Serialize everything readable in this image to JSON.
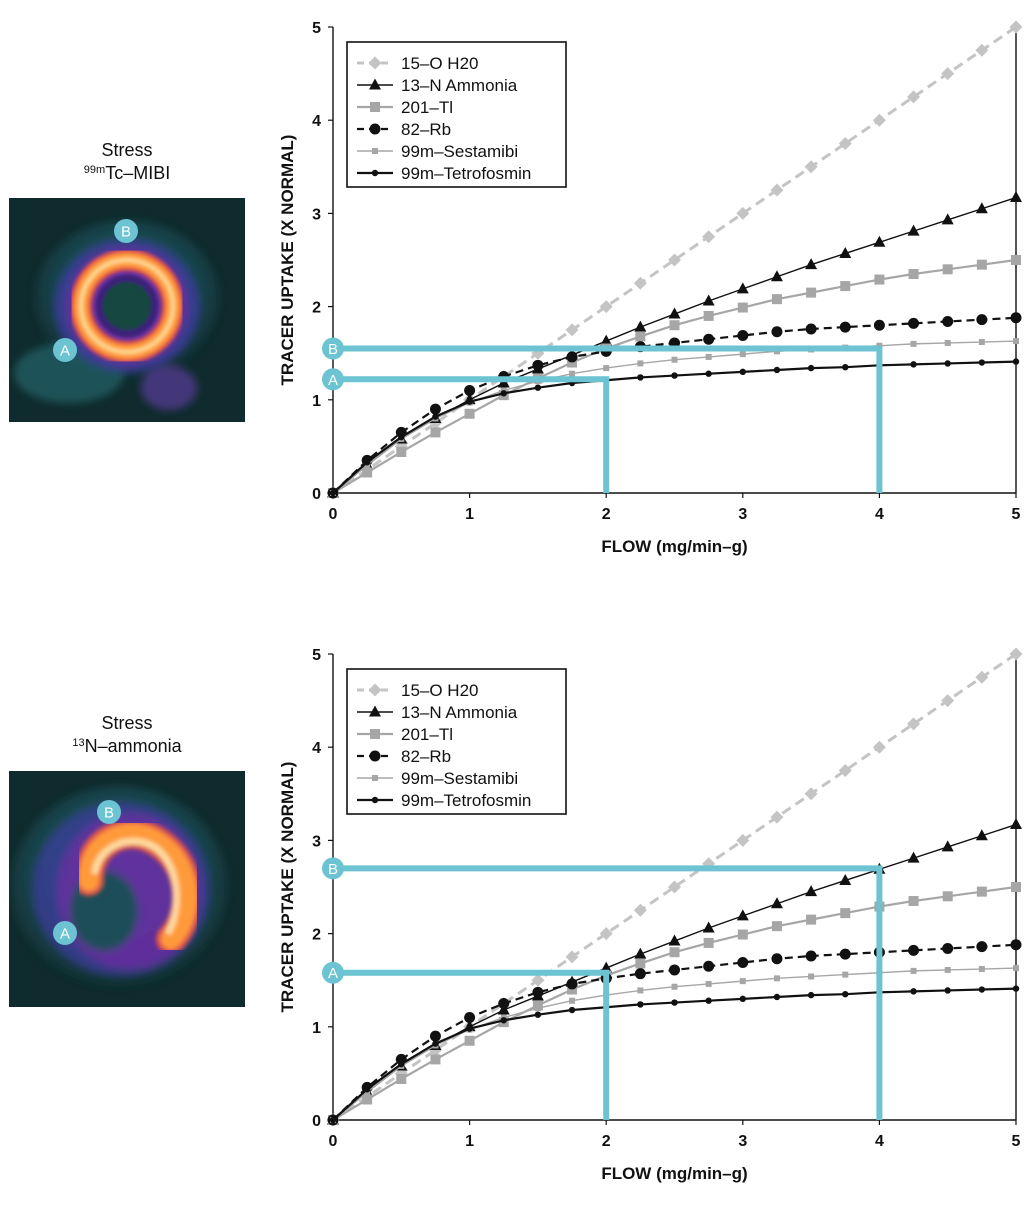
{
  "panels": [
    {
      "caption_line1": "Stress",
      "caption_iso": "99m",
      "caption_rest": "Tc–MIBI",
      "scan": {
        "type": "ring",
        "label_a": "A",
        "label_b": "B"
      },
      "chart_data": {
        "type": "line",
        "xlabel": "FLOW (mg/min–g)",
        "ylabel": "TRACER UPTAKE (X NORMAL)",
        "xlim": [
          0,
          5
        ],
        "ylim": [
          0,
          5
        ],
        "xticks": [
          "0",
          "1",
          "2",
          "3",
          "4",
          "5"
        ],
        "yticks": [
          "0",
          "1",
          "2",
          "3",
          "4",
          "5"
        ],
        "grid": false,
        "legend": "top-left",
        "series": [
          {
            "name": "15–O H20",
            "marker": "diamond",
            "color": "#c4c4c4",
            "dash": true,
            "width": 3,
            "x": [
              0,
              0.25,
              0.5,
              0.75,
              1,
              1.25,
              1.5,
              1.75,
              2,
              2.25,
              2.5,
              2.75,
              3,
              3.25,
              3.5,
              3.75,
              4,
              4.25,
              4.5,
              4.75,
              5
            ],
            "y": [
              0,
              0.25,
              0.5,
              0.75,
              1,
              1.25,
              1.5,
              1.75,
              2,
              2.25,
              2.5,
              2.75,
              3,
              3.25,
              3.5,
              3.75,
              4,
              4.25,
              4.5,
              4.75,
              5
            ]
          },
          {
            "name": "13–N Ammonia",
            "marker": "triangle",
            "color": "#111111",
            "dash": false,
            "width": 1.4,
            "x": [
              0,
              0.25,
              0.5,
              0.75,
              1,
              1.25,
              1.5,
              1.75,
              2,
              2.25,
              2.5,
              2.75,
              3,
              3.25,
              3.5,
              3.75,
              4,
              4.25,
              4.5,
              4.75,
              5
            ],
            "y": [
              0,
              0.3,
              0.58,
              0.8,
              1.0,
              1.18,
              1.33,
              1.48,
              1.63,
              1.78,
              1.92,
              2.06,
              2.19,
              2.32,
              2.45,
              2.57,
              2.69,
              2.81,
              2.93,
              3.05,
              3.17
            ]
          },
          {
            "name": "201–Tl",
            "marker": "square",
            "color": "#a6a6a6",
            "dash": false,
            "width": 2.2,
            "x": [
              0,
              0.25,
              0.5,
              0.75,
              1,
              1.25,
              1.5,
              1.75,
              2,
              2.25,
              2.5,
              2.75,
              3,
              3.25,
              3.5,
              3.75,
              4,
              4.25,
              4.5,
              4.75,
              5
            ],
            "y": [
              0,
              0.22,
              0.44,
              0.65,
              0.85,
              1.05,
              1.23,
              1.4,
              1.55,
              1.68,
              1.8,
              1.9,
              1.99,
              2.08,
              2.15,
              2.22,
              2.29,
              2.35,
              2.4,
              2.45,
              2.5
            ]
          },
          {
            "name": "82–Rb",
            "marker": "circle",
            "color": "#111111",
            "dash": true,
            "width": 2.2,
            "x": [
              0,
              0.25,
              0.5,
              0.75,
              1,
              1.25,
              1.5,
              1.75,
              2,
              2.25,
              2.5,
              2.75,
              3,
              3.25,
              3.5,
              3.75,
              4,
              4.25,
              4.5,
              4.75,
              5
            ],
            "y": [
              0,
              0.35,
              0.65,
              0.9,
              1.1,
              1.25,
              1.37,
              1.46,
              1.52,
              1.57,
              1.61,
              1.65,
              1.69,
              1.73,
              1.76,
              1.78,
              1.8,
              1.82,
              1.84,
              1.86,
              1.88
            ]
          },
          {
            "name": "99m–Sestamibi",
            "marker": "smallsquare",
            "color": "#a6a6a6",
            "dash": false,
            "width": 1.4,
            "x": [
              0,
              0.25,
              0.5,
              0.75,
              1,
              1.25,
              1.5,
              1.75,
              2,
              2.25,
              2.5,
              2.75,
              3,
              3.25,
              3.5,
              3.75,
              4,
              4.25,
              4.5,
              4.75,
              5
            ],
            "y": [
              0,
              0.3,
              0.58,
              0.8,
              0.97,
              1.1,
              1.2,
              1.28,
              1.34,
              1.39,
              1.43,
              1.46,
              1.49,
              1.52,
              1.54,
              1.56,
              1.58,
              1.6,
              1.61,
              1.62,
              1.63
            ]
          },
          {
            "name": "99m–Tetrofosmin",
            "marker": "smallcircle",
            "color": "#111111",
            "dash": false,
            "width": 2.2,
            "x": [
              0,
              0.25,
              0.5,
              0.75,
              1,
              1.25,
              1.5,
              1.75,
              2,
              2.25,
              2.5,
              2.75,
              3,
              3.25,
              3.5,
              3.75,
              4,
              4.25,
              4.5,
              4.75,
              5
            ],
            "y": [
              0,
              0.33,
              0.6,
              0.82,
              0.98,
              1.07,
              1.13,
              1.18,
              1.21,
              1.24,
              1.26,
              1.28,
              1.3,
              1.32,
              1.34,
              1.35,
              1.37,
              1.38,
              1.39,
              1.4,
              1.41
            ]
          }
        ],
        "guides": [
          {
            "label": "A",
            "flow": 2,
            "uptake": 1.22
          },
          {
            "label": "B",
            "flow": 4,
            "uptake": 1.55
          }
        ],
        "guide_color": "#6cc3d1"
      }
    },
    {
      "caption_line1": "Stress",
      "caption_iso": "13",
      "caption_rest": "N–ammonia",
      "scan": {
        "type": "horseshoe",
        "label_a": "A",
        "label_b": "B"
      },
      "chart_data": {
        "type": "line",
        "xlabel": "FLOW (mg/min–g)",
        "ylabel": "TRACER UPTAKE (X NORMAL)",
        "xlim": [
          0,
          5
        ],
        "ylim": [
          0,
          5
        ],
        "xticks": [
          "0",
          "1",
          "2",
          "3",
          "4",
          "5"
        ],
        "yticks": [
          "0",
          "1",
          "2",
          "3",
          "4",
          "5"
        ],
        "grid": false,
        "legend": "top-left",
        "series": [
          {
            "name": "15–O H20",
            "marker": "diamond",
            "color": "#c4c4c4",
            "dash": true,
            "width": 3,
            "x": [
              0,
              0.25,
              0.5,
              0.75,
              1,
              1.25,
              1.5,
              1.75,
              2,
              2.25,
              2.5,
              2.75,
              3,
              3.25,
              3.5,
              3.75,
              4,
              4.25,
              4.5,
              4.75,
              5
            ],
            "y": [
              0,
              0.25,
              0.5,
              0.75,
              1,
              1.25,
              1.5,
              1.75,
              2,
              2.25,
              2.5,
              2.75,
              3,
              3.25,
              3.5,
              3.75,
              4,
              4.25,
              4.5,
              4.75,
              5
            ]
          },
          {
            "name": "13–N Ammonia",
            "marker": "triangle",
            "color": "#111111",
            "dash": false,
            "width": 1.4,
            "x": [
              0,
              0.25,
              0.5,
              0.75,
              1,
              1.25,
              1.5,
              1.75,
              2,
              2.25,
              2.5,
              2.75,
              3,
              3.25,
              3.5,
              3.75,
              4,
              4.25,
              4.5,
              4.75,
              5
            ],
            "y": [
              0,
              0.3,
              0.58,
              0.8,
              1.0,
              1.18,
              1.33,
              1.48,
              1.63,
              1.78,
              1.92,
              2.06,
              2.19,
              2.32,
              2.45,
              2.57,
              2.69,
              2.81,
              2.93,
              3.05,
              3.17
            ]
          },
          {
            "name": "201–Tl",
            "marker": "square",
            "color": "#a6a6a6",
            "dash": false,
            "width": 2.2,
            "x": [
              0,
              0.25,
              0.5,
              0.75,
              1,
              1.25,
              1.5,
              1.75,
              2,
              2.25,
              2.5,
              2.75,
              3,
              3.25,
              3.5,
              3.75,
              4,
              4.25,
              4.5,
              4.75,
              5
            ],
            "y": [
              0,
              0.22,
              0.44,
              0.65,
              0.85,
              1.05,
              1.23,
              1.4,
              1.55,
              1.68,
              1.8,
              1.9,
              1.99,
              2.08,
              2.15,
              2.22,
              2.29,
              2.35,
              2.4,
              2.45,
              2.5
            ]
          },
          {
            "name": "82–Rb",
            "marker": "circle",
            "color": "#111111",
            "dash": true,
            "width": 2.2,
            "x": [
              0,
              0.25,
              0.5,
              0.75,
              1,
              1.25,
              1.5,
              1.75,
              2,
              2.25,
              2.5,
              2.75,
              3,
              3.25,
              3.5,
              3.75,
              4,
              4.25,
              4.5,
              4.75,
              5
            ],
            "y": [
              0,
              0.35,
              0.65,
              0.9,
              1.1,
              1.25,
              1.37,
              1.46,
              1.52,
              1.57,
              1.61,
              1.65,
              1.69,
              1.73,
              1.76,
              1.78,
              1.8,
              1.82,
              1.84,
              1.86,
              1.88
            ]
          },
          {
            "name": "99m–Sestamibi",
            "marker": "smallsquare",
            "color": "#a6a6a6",
            "dash": false,
            "width": 1.4,
            "x": [
              0,
              0.25,
              0.5,
              0.75,
              1,
              1.25,
              1.5,
              1.75,
              2,
              2.25,
              2.5,
              2.75,
              3,
              3.25,
              3.5,
              3.75,
              4,
              4.25,
              4.5,
              4.75,
              5
            ],
            "y": [
              0,
              0.3,
              0.58,
              0.8,
              0.97,
              1.1,
              1.2,
              1.28,
              1.34,
              1.39,
              1.43,
              1.46,
              1.49,
              1.52,
              1.54,
              1.56,
              1.58,
              1.6,
              1.61,
              1.62,
              1.63
            ]
          },
          {
            "name": "99m–Tetrofosmin",
            "marker": "smallcircle",
            "color": "#111111",
            "dash": false,
            "width": 2.2,
            "x": [
              0,
              0.25,
              0.5,
              0.75,
              1,
              1.25,
              1.5,
              1.75,
              2,
              2.25,
              2.5,
              2.75,
              3,
              3.25,
              3.5,
              3.75,
              4,
              4.25,
              4.5,
              4.75,
              5
            ],
            "y": [
              0,
              0.33,
              0.6,
              0.82,
              0.98,
              1.07,
              1.13,
              1.18,
              1.21,
              1.24,
              1.26,
              1.28,
              1.3,
              1.32,
              1.34,
              1.35,
              1.37,
              1.38,
              1.39,
              1.4,
              1.41
            ]
          }
        ],
        "guides": [
          {
            "label": "A",
            "flow": 2,
            "uptake": 1.58
          },
          {
            "label": "B",
            "flow": 4,
            "uptake": 2.7
          }
        ],
        "guide_color": "#6cc3d1"
      }
    }
  ]
}
